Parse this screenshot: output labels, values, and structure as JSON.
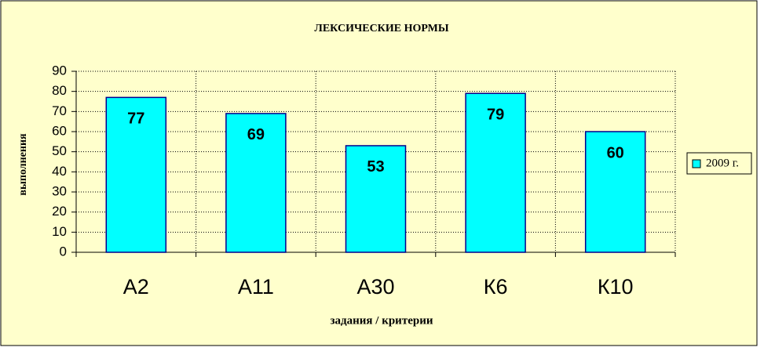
{
  "chart_data": {
    "type": "bar",
    "title": "ЛЕКСИЧЕСКИЕ НОРМЫ",
    "x_label": "задания / критерии",
    "y_label": "выполнения",
    "categories": [
      "А2",
      "А11",
      "А30",
      "К6",
      "К10"
    ],
    "series": [
      {
        "name": "2009 г.",
        "color": "#00ffff",
        "values": [
          77,
          69,
          53,
          79,
          60
        ]
      }
    ],
    "ylim": [
      0,
      90
    ],
    "yticks": [
      0,
      10,
      20,
      30,
      40,
      50,
      60,
      70,
      80,
      90
    ],
    "grid": true,
    "legend": "right"
  }
}
